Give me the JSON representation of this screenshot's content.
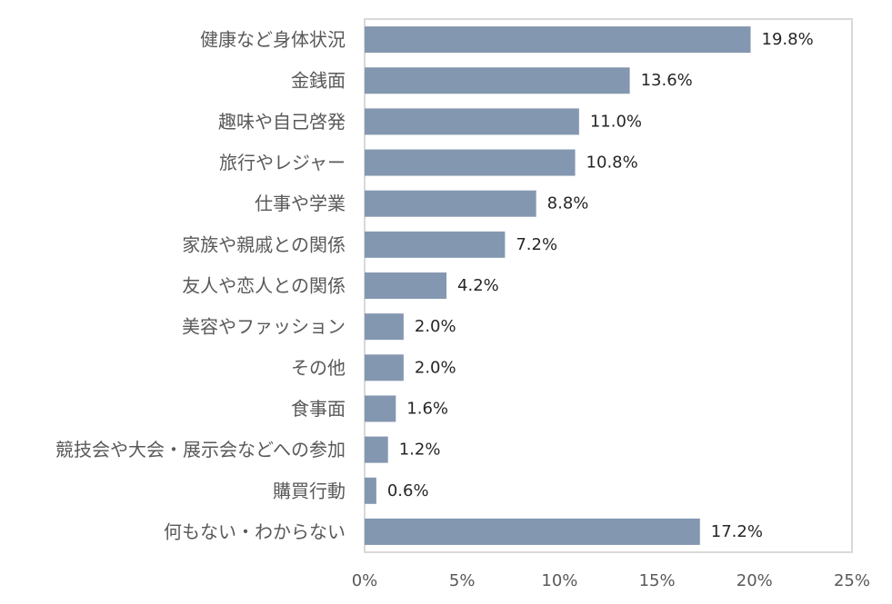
{
  "chart_data": {
    "type": "bar",
    "orientation": "horizontal",
    "categories": [
      "健康など身体状況",
      "金銭面",
      "趣味や自己啓発",
      "旅行やレジャー",
      "仕事や学業",
      "家族や親戚との関係",
      "友人や恋人との関係",
      "美容やファッション",
      "その他",
      "食事面",
      "競技会や大会・展示会などへの参加",
      "購買行動",
      "何もない・わからない"
    ],
    "values": [
      19.8,
      13.6,
      11.0,
      10.8,
      8.8,
      7.2,
      4.2,
      2.0,
      2.0,
      1.6,
      1.2,
      0.6,
      17.2
    ],
    "value_labels": [
      "19.8%",
      "13.6%",
      "11.0%",
      "10.8%",
      "8.8%",
      "7.2%",
      "4.2%",
      "2.0%",
      "2.0%",
      "1.6%",
      "1.2%",
      "0.6%",
      "17.2%"
    ],
    "x_ticks": [
      0,
      5,
      10,
      15,
      20,
      25
    ],
    "x_tick_labels": [
      "0%",
      "5%",
      "10%",
      "15%",
      "20%",
      "25%"
    ],
    "xlim": [
      0,
      25
    ],
    "title": "",
    "xlabel": "",
    "ylabel": "",
    "grid": false,
    "bar_color": "#8497b0",
    "frame_color": "#d9d9d9"
  }
}
